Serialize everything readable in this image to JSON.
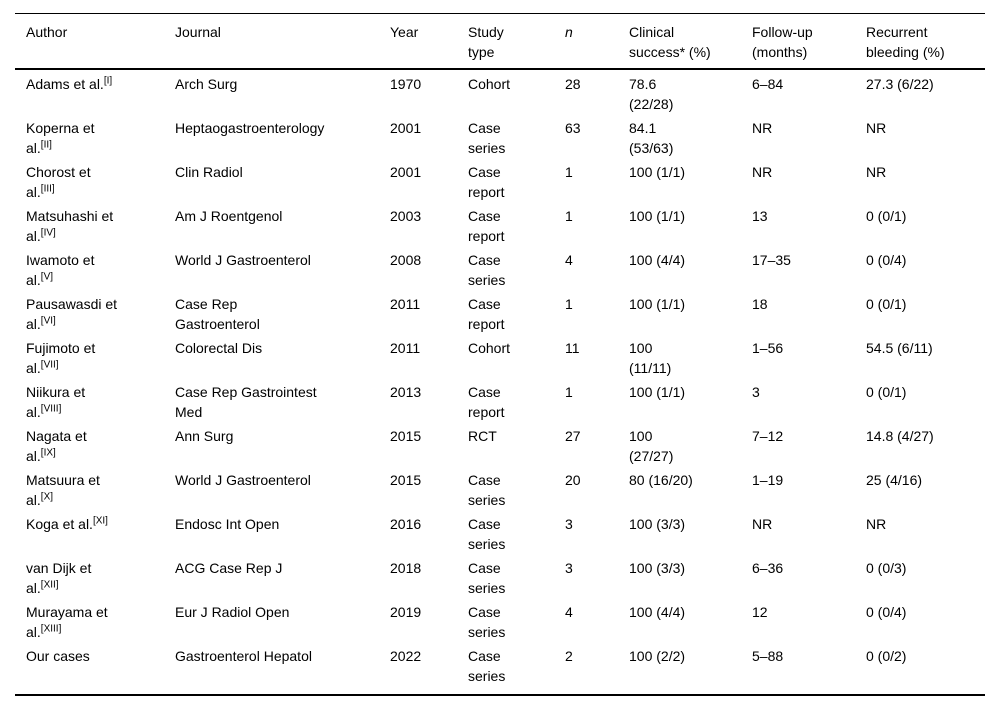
{
  "table": {
    "name": "studies-summary-table",
    "columns": [
      {
        "id": "author",
        "label": "Author",
        "label_lines": [
          "Author"
        ]
      },
      {
        "id": "journal",
        "label": "Journal",
        "label_lines": [
          "Journal"
        ]
      },
      {
        "id": "year",
        "label": "Year",
        "label_lines": [
          "Year"
        ]
      },
      {
        "id": "study",
        "label": "Study type",
        "label_lines": [
          "Study",
          "type"
        ]
      },
      {
        "id": "n",
        "label": "n",
        "label_lines": [
          "n"
        ],
        "italic": true
      },
      {
        "id": "success",
        "label": "Clinical success* (%)",
        "label_lines": [
          "Clinical",
          "success* (%)"
        ]
      },
      {
        "id": "followup",
        "label": "Follow-up (months)",
        "label_lines": [
          "Follow-up",
          "(months)"
        ]
      },
      {
        "id": "bleeding",
        "label": "Recurrent bleeding (%)",
        "label_lines": [
          "Recurrent",
          "bleeding (%)"
        ]
      }
    ],
    "rows": [
      {
        "author": {
          "lines": [
            "Adams et al."
          ],
          "sup": "[I]"
        },
        "journal": {
          "lines": [
            "Arch Surg"
          ]
        },
        "year": {
          "lines": [
            "1970"
          ]
        },
        "study": {
          "lines": [
            "Cohort"
          ]
        },
        "n": {
          "lines": [
            "28"
          ]
        },
        "success": {
          "lines": [
            "78.6",
            "(22/28)"
          ]
        },
        "followup": {
          "lines": [
            "6–84"
          ]
        },
        "bleeding": {
          "lines": [
            "27.3 (6/22)"
          ]
        }
      },
      {
        "author": {
          "lines": [
            "Koperna et",
            "al."
          ],
          "sup": "[II]"
        },
        "journal": {
          "lines": [
            "Heptaogastroenterology"
          ]
        },
        "year": {
          "lines": [
            "2001"
          ]
        },
        "study": {
          "lines": [
            "Case",
            "series"
          ]
        },
        "n": {
          "lines": [
            "63"
          ]
        },
        "success": {
          "lines": [
            "84.1",
            "(53/63)"
          ]
        },
        "followup": {
          "lines": [
            "NR"
          ]
        },
        "bleeding": {
          "lines": [
            "NR"
          ]
        }
      },
      {
        "author": {
          "lines": [
            "Chorost et",
            "al."
          ],
          "sup": "[III]"
        },
        "journal": {
          "lines": [
            "Clin Radiol"
          ]
        },
        "year": {
          "lines": [
            "2001"
          ]
        },
        "study": {
          "lines": [
            "Case",
            "report"
          ]
        },
        "n": {
          "lines": [
            "1"
          ]
        },
        "success": {
          "lines": [
            "100 (1/1)"
          ]
        },
        "followup": {
          "lines": [
            "NR"
          ]
        },
        "bleeding": {
          "lines": [
            "NR"
          ]
        }
      },
      {
        "author": {
          "lines": [
            "Matsuhashi et",
            "al."
          ],
          "sup": "[IV]"
        },
        "journal": {
          "lines": [
            "Am J Roentgenol"
          ]
        },
        "year": {
          "lines": [
            "2003"
          ]
        },
        "study": {
          "lines": [
            "Case",
            "report"
          ]
        },
        "n": {
          "lines": [
            "1"
          ]
        },
        "success": {
          "lines": [
            "100 (1/1)"
          ]
        },
        "followup": {
          "lines": [
            "13"
          ]
        },
        "bleeding": {
          "lines": [
            "0 (0/1)"
          ]
        }
      },
      {
        "author": {
          "lines": [
            "Iwamoto et",
            "al."
          ],
          "sup": "[V]"
        },
        "journal": {
          "lines": [
            "World J Gastroenterol"
          ]
        },
        "year": {
          "lines": [
            "2008"
          ]
        },
        "study": {
          "lines": [
            "Case",
            "series"
          ]
        },
        "n": {
          "lines": [
            "4"
          ]
        },
        "success": {
          "lines": [
            "100 (4/4)"
          ]
        },
        "followup": {
          "lines": [
            "17–35"
          ]
        },
        "bleeding": {
          "lines": [
            "0 (0/4)"
          ]
        }
      },
      {
        "author": {
          "lines": [
            "Pausawasdi et",
            "al."
          ],
          "sup": "[VI]"
        },
        "journal": {
          "lines": [
            "Case Rep",
            "Gastroenterol"
          ]
        },
        "year": {
          "lines": [
            "2011"
          ]
        },
        "study": {
          "lines": [
            "Case",
            "report"
          ]
        },
        "n": {
          "lines": [
            "1"
          ]
        },
        "success": {
          "lines": [
            "100 (1/1)"
          ]
        },
        "followup": {
          "lines": [
            "18"
          ]
        },
        "bleeding": {
          "lines": [
            "0 (0/1)"
          ]
        }
      },
      {
        "author": {
          "lines": [
            "Fujimoto et",
            "al."
          ],
          "sup": "[VII]"
        },
        "journal": {
          "lines": [
            "Colorectal Dis"
          ]
        },
        "year": {
          "lines": [
            "2011"
          ]
        },
        "study": {
          "lines": [
            "Cohort"
          ]
        },
        "n": {
          "lines": [
            "11"
          ]
        },
        "success": {
          "lines": [
            "100",
            "(11/11)"
          ]
        },
        "followup": {
          "lines": [
            "1–56"
          ]
        },
        "bleeding": {
          "lines": [
            "54.5 (6/11)"
          ]
        }
      },
      {
        "author": {
          "lines": [
            "Niikura et",
            "al."
          ],
          "sup": "[VIII]"
        },
        "journal": {
          "lines": [
            "Case Rep Gastrointest",
            "Med"
          ]
        },
        "year": {
          "lines": [
            "2013"
          ]
        },
        "study": {
          "lines": [
            "Case",
            "report"
          ]
        },
        "n": {
          "lines": [
            "1"
          ]
        },
        "success": {
          "lines": [
            "100 (1/1)"
          ]
        },
        "followup": {
          "lines": [
            "3"
          ]
        },
        "bleeding": {
          "lines": [
            "0 (0/1)"
          ]
        }
      },
      {
        "author": {
          "lines": [
            "Nagata et",
            "al."
          ],
          "sup": "[IX]"
        },
        "journal": {
          "lines": [
            "Ann Surg"
          ]
        },
        "year": {
          "lines": [
            "2015"
          ]
        },
        "study": {
          "lines": [
            "RCT"
          ]
        },
        "n": {
          "lines": [
            "27"
          ]
        },
        "success": {
          "lines": [
            "100",
            "(27/27)"
          ]
        },
        "followup": {
          "lines": [
            "7–12"
          ]
        },
        "bleeding": {
          "lines": [
            "14.8 (4/27)"
          ]
        }
      },
      {
        "author": {
          "lines": [
            "Matsuura et",
            "al."
          ],
          "sup": "[X]"
        },
        "journal": {
          "lines": [
            "World J Gastroenterol"
          ]
        },
        "year": {
          "lines": [
            "2015"
          ]
        },
        "study": {
          "lines": [
            "Case",
            "series"
          ]
        },
        "n": {
          "lines": [
            "20"
          ]
        },
        "success": {
          "lines": [
            "80 (16/20)"
          ]
        },
        "followup": {
          "lines": [
            "1–19"
          ]
        },
        "bleeding": {
          "lines": [
            "25 (4/16)"
          ]
        }
      },
      {
        "author": {
          "lines": [
            "Koga et al."
          ],
          "sup": "[XI]"
        },
        "journal": {
          "lines": [
            "Endosc Int Open"
          ]
        },
        "year": {
          "lines": [
            "2016"
          ]
        },
        "study": {
          "lines": [
            "Case",
            "series"
          ]
        },
        "n": {
          "lines": [
            "3"
          ]
        },
        "success": {
          "lines": [
            "100 (3/3)"
          ]
        },
        "followup": {
          "lines": [
            "NR"
          ]
        },
        "bleeding": {
          "lines": [
            "NR"
          ]
        }
      },
      {
        "author": {
          "lines": [
            "van Dijk et",
            "al."
          ],
          "sup": "[XII]"
        },
        "journal": {
          "lines": [
            "ACG Case Rep J"
          ]
        },
        "year": {
          "lines": [
            "2018"
          ]
        },
        "study": {
          "lines": [
            "Case",
            "series"
          ]
        },
        "n": {
          "lines": [
            "3"
          ]
        },
        "success": {
          "lines": [
            "100 (3/3)"
          ]
        },
        "followup": {
          "lines": [
            "6–36"
          ]
        },
        "bleeding": {
          "lines": [
            "0 (0/3)"
          ]
        }
      },
      {
        "author": {
          "lines": [
            "Murayama et",
            "al."
          ],
          "sup": "[XIII]"
        },
        "journal": {
          "lines": [
            "Eur J Radiol Open"
          ]
        },
        "year": {
          "lines": [
            "2019"
          ]
        },
        "study": {
          "lines": [
            "Case",
            "series"
          ]
        },
        "n": {
          "lines": [
            "4"
          ]
        },
        "success": {
          "lines": [
            "100 (4/4)"
          ]
        },
        "followup": {
          "lines": [
            "12"
          ]
        },
        "bleeding": {
          "lines": [
            "0 (0/4)"
          ]
        }
      },
      {
        "author": {
          "lines": [
            "Our cases"
          ]
        },
        "journal": {
          "lines": [
            "Gastroenterol Hepatol"
          ]
        },
        "year": {
          "lines": [
            "2022"
          ]
        },
        "study": {
          "lines": [
            "Case",
            "series"
          ]
        },
        "n": {
          "lines": [
            "2"
          ]
        },
        "success": {
          "lines": [
            "100 (2/2)"
          ]
        },
        "followup": {
          "lines": [
            "5–88"
          ]
        },
        "bleeding": {
          "lines": [
            "0 (0/2)"
          ]
        }
      }
    ]
  }
}
